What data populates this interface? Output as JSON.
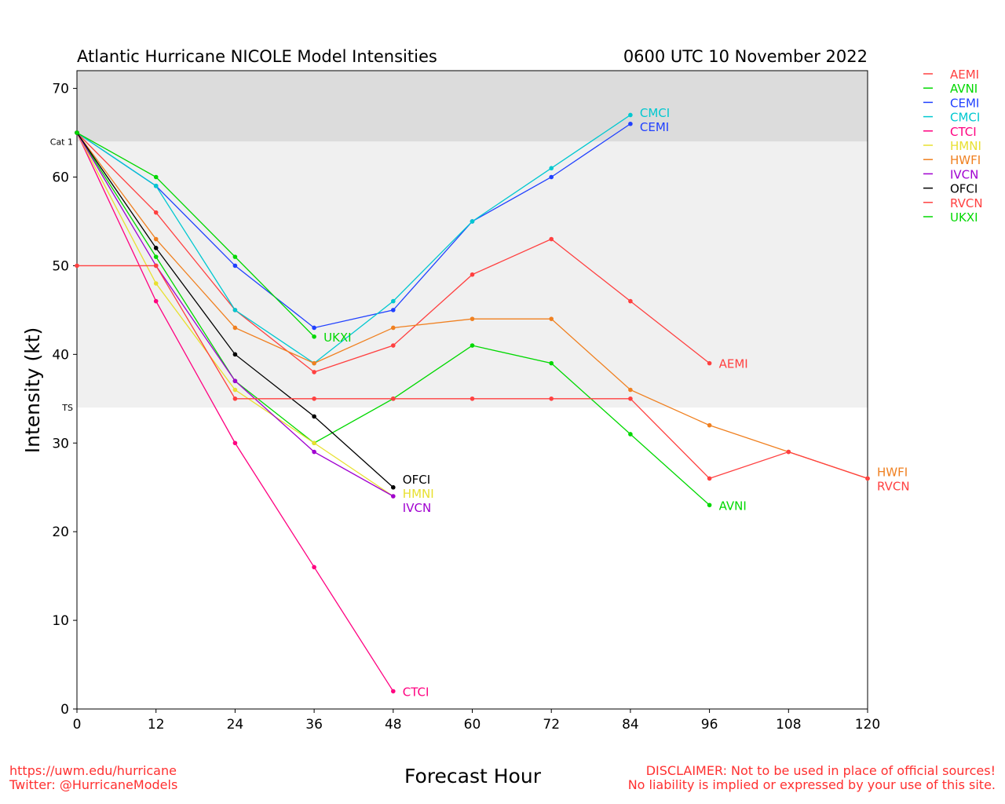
{
  "chart_data": {
    "type": "line",
    "title": "Atlantic Hurricane NICOLE Model Intensities",
    "subtitle": "0600 UTC 10 November 2022",
    "xlabel": "Forecast Hour",
    "ylabel": "Intensity (kt)",
    "xlim": [
      0,
      120
    ],
    "ylim": [
      0,
      72
    ],
    "xticks": [
      0,
      12,
      24,
      36,
      48,
      60,
      72,
      84,
      96,
      108,
      120
    ],
    "yticks": [
      0,
      10,
      20,
      30,
      40,
      50,
      60,
      70
    ],
    "bands": [
      {
        "label": "Cat 1",
        "from": 64,
        "to": 72,
        "color": "#dcdcdc"
      },
      {
        "label": "TS",
        "from": 34,
        "to": 64,
        "color": "#f0f0f0"
      }
    ],
    "legend_position": "right",
    "series": [
      {
        "name": "AEMI",
        "color": "#ff4040",
        "x": [
          0,
          12,
          24,
          36,
          48,
          60,
          72,
          84,
          96
        ],
        "values": [
          65,
          56,
          45,
          38,
          41,
          49,
          53,
          46,
          39
        ]
      },
      {
        "name": "AVNI",
        "color": "#00d800",
        "x": [
          0,
          12,
          24,
          36,
          48,
          60,
          72,
          84,
          96
        ],
        "values": [
          65,
          51,
          37,
          30,
          35,
          41,
          39,
          31,
          23
        ]
      },
      {
        "name": "CEMI",
        "color": "#2040ff",
        "x": [
          0,
          12,
          24,
          36,
          48,
          60,
          72,
          84
        ],
        "values": [
          65,
          59,
          50,
          43,
          45,
          55,
          60,
          66
        ]
      },
      {
        "name": "CMCI",
        "color": "#00c8d0",
        "x": [
          0,
          12,
          24,
          36,
          48,
          60,
          72,
          84
        ],
        "values": [
          65,
          59,
          45,
          39,
          46,
          55,
          61,
          67
        ]
      },
      {
        "name": "CTCI",
        "color": "#ff0080",
        "x": [
          0,
          12,
          24,
          36,
          48
        ],
        "values": [
          65,
          46,
          30,
          16,
          2
        ]
      },
      {
        "name": "HMNI",
        "color": "#e8e030",
        "x": [
          0,
          12,
          24,
          36,
          48
        ],
        "values": [
          65,
          48,
          36,
          30,
          24
        ]
      },
      {
        "name": "HWFI",
        "color": "#f08020",
        "x": [
          0,
          12,
          24,
          36,
          48,
          60,
          72,
          84,
          96,
          108,
          120
        ],
        "values": [
          65,
          53,
          43,
          39,
          43,
          44,
          44,
          36,
          32,
          29,
          26
        ]
      },
      {
        "name": "IVCN",
        "color": "#a000d0",
        "x": [
          0,
          12,
          24,
          36,
          48
        ],
        "values": [
          65,
          50,
          37,
          29,
          24
        ]
      },
      {
        "name": "OFCI",
        "color": "#000000",
        "x": [
          0,
          12,
          24,
          36,
          48
        ],
        "values": [
          65,
          52,
          40,
          33,
          25
        ]
      },
      {
        "name": "RVCN",
        "color": "#ff4040",
        "x": [
          0,
          12,
          24,
          36,
          48,
          60,
          72,
          84,
          96,
          108,
          120
        ],
        "values": [
          50,
          50,
          35,
          35,
          35,
          35,
          35,
          35,
          26,
          29,
          26
        ]
      },
      {
        "name": "UKXI",
        "color": "#00d800",
        "x": [
          0,
          12,
          24,
          36
        ],
        "values": [
          65,
          60,
          51,
          42
        ]
      }
    ]
  },
  "footer": {
    "left1": "https://uwm.edu/hurricane",
    "left2": "Twitter: @HurricaneModels",
    "right1": "DISCLAIMER: Not to be used in place of official sources!",
    "right2": "No liability is implied or expressed by your use of this site."
  }
}
